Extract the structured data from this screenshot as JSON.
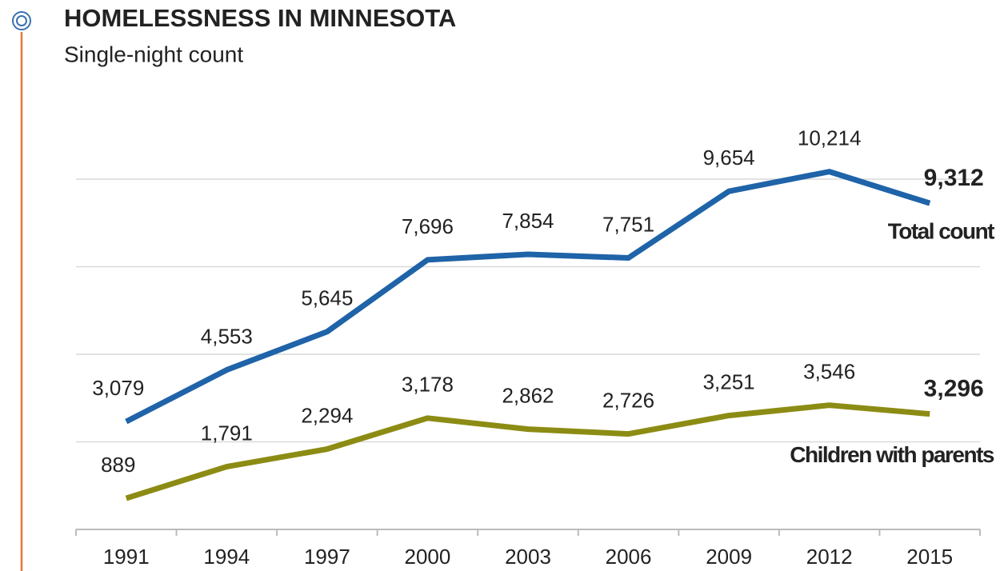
{
  "chart_data": {
    "type": "line",
    "title": "HOMELESSNESS IN MINNESOTA",
    "subtitle": "Single-night count",
    "categories": [
      "1991",
      "1994",
      "1997",
      "2000",
      "2003",
      "2006",
      "2009",
      "2012",
      "2015"
    ],
    "series": [
      {
        "name": "Total count",
        "color": "#1f63a8",
        "values": [
          3079,
          4553,
          5645,
          7696,
          7854,
          7751,
          9654,
          10214,
          9312
        ],
        "value_labels": [
          "3,079",
          "4,553",
          "5,645",
          "7,696",
          "7,854",
          "7,751",
          "9,654",
          "10,214",
          "9,312"
        ]
      },
      {
        "name": "Children with parents",
        "color": "#8c8c14",
        "values": [
          889,
          1791,
          2294,
          3178,
          2862,
          2726,
          3251,
          3546,
          3296
        ],
        "value_labels": [
          "889",
          "1,791",
          "2,294",
          "3,178",
          "2,862",
          "2,726",
          "3,251",
          "3,546",
          "3,296"
        ]
      }
    ],
    "ylim": [
      0,
      10000
    ],
    "yticks": [
      0,
      2500,
      5000,
      7500,
      10000
    ],
    "grid": true
  }
}
